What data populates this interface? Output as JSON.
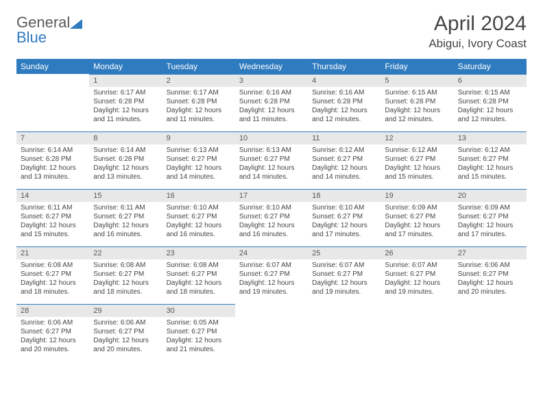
{
  "logo": {
    "left": "General",
    "right": "Blue"
  },
  "title": "April 2024",
  "location": "Abigui, Ivory Coast",
  "colors": {
    "header_bg": "#2f7bbf",
    "header_fg": "#ffffff",
    "daynum_bg": "#e8e8e8",
    "daynum_border": "#2f7bbf",
    "text": "#444444",
    "background": "#ffffff"
  },
  "typography": {
    "title_fontsize": 30,
    "location_fontsize": 17,
    "weekday_fontsize": 12,
    "cell_fontsize": 10
  },
  "weekdays": [
    "Sunday",
    "Monday",
    "Tuesday",
    "Wednesday",
    "Thursday",
    "Friday",
    "Saturday"
  ],
  "weeks": [
    [
      null,
      {
        "n": "1",
        "sr": "6:17 AM",
        "ss": "6:28 PM",
        "dl": "12 hours and 11 minutes."
      },
      {
        "n": "2",
        "sr": "6:17 AM",
        "ss": "6:28 PM",
        "dl": "12 hours and 11 minutes."
      },
      {
        "n": "3",
        "sr": "6:16 AM",
        "ss": "6:28 PM",
        "dl": "12 hours and 11 minutes."
      },
      {
        "n": "4",
        "sr": "6:16 AM",
        "ss": "6:28 PM",
        "dl": "12 hours and 12 minutes."
      },
      {
        "n": "5",
        "sr": "6:15 AM",
        "ss": "6:28 PM",
        "dl": "12 hours and 12 minutes."
      },
      {
        "n": "6",
        "sr": "6:15 AM",
        "ss": "6:28 PM",
        "dl": "12 hours and 12 minutes."
      }
    ],
    [
      {
        "n": "7",
        "sr": "6:14 AM",
        "ss": "6:28 PM",
        "dl": "12 hours and 13 minutes."
      },
      {
        "n": "8",
        "sr": "6:14 AM",
        "ss": "6:28 PM",
        "dl": "12 hours and 13 minutes."
      },
      {
        "n": "9",
        "sr": "6:13 AM",
        "ss": "6:27 PM",
        "dl": "12 hours and 14 minutes."
      },
      {
        "n": "10",
        "sr": "6:13 AM",
        "ss": "6:27 PM",
        "dl": "12 hours and 14 minutes."
      },
      {
        "n": "11",
        "sr": "6:12 AM",
        "ss": "6:27 PM",
        "dl": "12 hours and 14 minutes."
      },
      {
        "n": "12",
        "sr": "6:12 AM",
        "ss": "6:27 PM",
        "dl": "12 hours and 15 minutes."
      },
      {
        "n": "13",
        "sr": "6:12 AM",
        "ss": "6:27 PM",
        "dl": "12 hours and 15 minutes."
      }
    ],
    [
      {
        "n": "14",
        "sr": "6:11 AM",
        "ss": "6:27 PM",
        "dl": "12 hours and 15 minutes."
      },
      {
        "n": "15",
        "sr": "6:11 AM",
        "ss": "6:27 PM",
        "dl": "12 hours and 16 minutes."
      },
      {
        "n": "16",
        "sr": "6:10 AM",
        "ss": "6:27 PM",
        "dl": "12 hours and 16 minutes."
      },
      {
        "n": "17",
        "sr": "6:10 AM",
        "ss": "6:27 PM",
        "dl": "12 hours and 16 minutes."
      },
      {
        "n": "18",
        "sr": "6:10 AM",
        "ss": "6:27 PM",
        "dl": "12 hours and 17 minutes."
      },
      {
        "n": "19",
        "sr": "6:09 AM",
        "ss": "6:27 PM",
        "dl": "12 hours and 17 minutes."
      },
      {
        "n": "20",
        "sr": "6:09 AM",
        "ss": "6:27 PM",
        "dl": "12 hours and 17 minutes."
      }
    ],
    [
      {
        "n": "21",
        "sr": "6:08 AM",
        "ss": "6:27 PM",
        "dl": "12 hours and 18 minutes."
      },
      {
        "n": "22",
        "sr": "6:08 AM",
        "ss": "6:27 PM",
        "dl": "12 hours and 18 minutes."
      },
      {
        "n": "23",
        "sr": "6:08 AM",
        "ss": "6:27 PM",
        "dl": "12 hours and 18 minutes."
      },
      {
        "n": "24",
        "sr": "6:07 AM",
        "ss": "6:27 PM",
        "dl": "12 hours and 19 minutes."
      },
      {
        "n": "25",
        "sr": "6:07 AM",
        "ss": "6:27 PM",
        "dl": "12 hours and 19 minutes."
      },
      {
        "n": "26",
        "sr": "6:07 AM",
        "ss": "6:27 PM",
        "dl": "12 hours and 19 minutes."
      },
      {
        "n": "27",
        "sr": "6:06 AM",
        "ss": "6:27 PM",
        "dl": "12 hours and 20 minutes."
      }
    ],
    [
      {
        "n": "28",
        "sr": "6:06 AM",
        "ss": "6:27 PM",
        "dl": "12 hours and 20 minutes."
      },
      {
        "n": "29",
        "sr": "6:06 AM",
        "ss": "6:27 PM",
        "dl": "12 hours and 20 minutes."
      },
      {
        "n": "30",
        "sr": "6:05 AM",
        "ss": "6:27 PM",
        "dl": "12 hours and 21 minutes."
      },
      null,
      null,
      null,
      null
    ]
  ],
  "labels": {
    "sunrise": "Sunrise:",
    "sunset": "Sunset:",
    "daylight": "Daylight:"
  }
}
